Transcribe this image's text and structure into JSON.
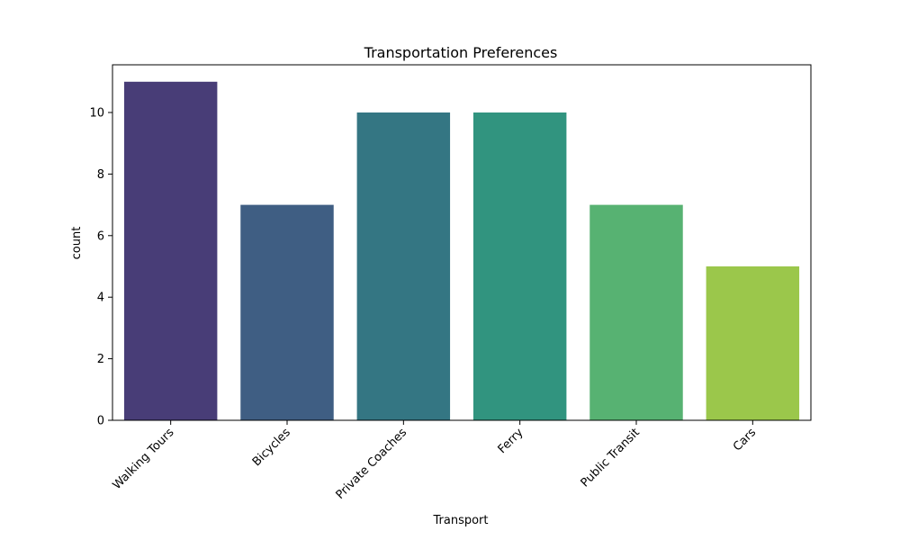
{
  "chart_data": {
    "type": "bar",
    "title": "Transportation Preferences",
    "xlabel": "Transport",
    "ylabel": "count",
    "categories": [
      "Walking Tours",
      "Bicycles",
      "Private Coaches",
      "Ferry",
      "Public Transit",
      "Cars"
    ],
    "values": [
      11,
      7,
      10,
      10,
      7,
      5
    ],
    "colors": [
      "#483d77",
      "#3f5e83",
      "#347683",
      "#31947f",
      "#57b272",
      "#9bc74b"
    ],
    "ylim": [
      0,
      11.55
    ],
    "yticks": [
      0,
      2,
      4,
      6,
      8,
      10
    ],
    "grid": false,
    "legend": "none"
  }
}
